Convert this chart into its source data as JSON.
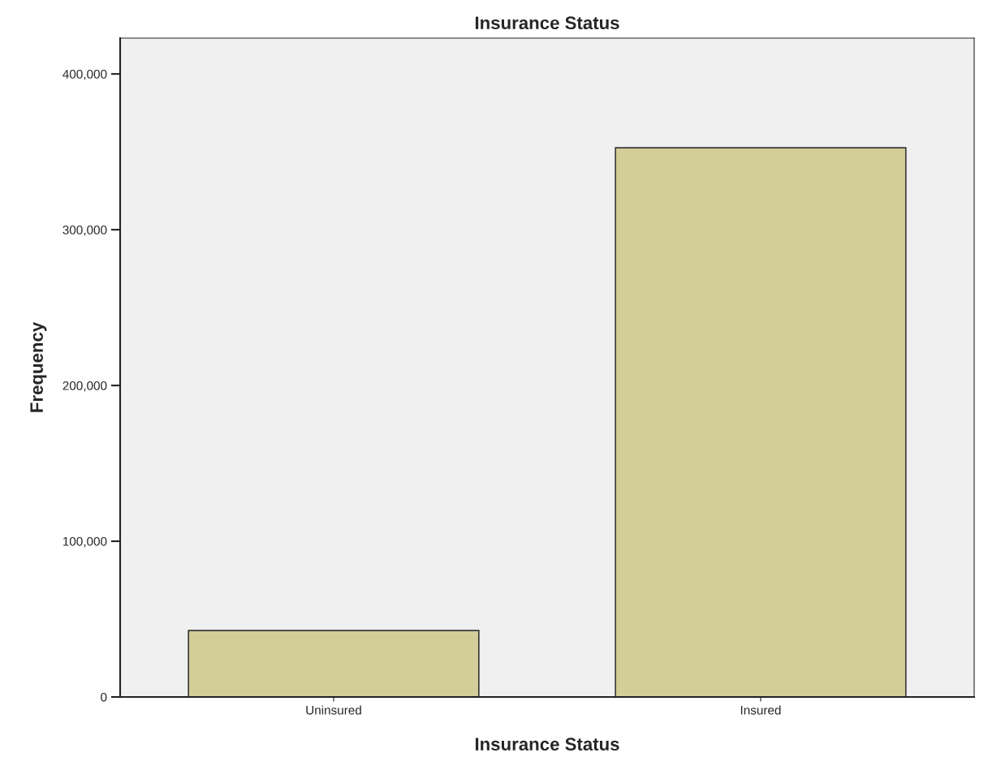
{
  "chart_data": {
    "type": "bar",
    "title": "Insurance Status",
    "xlabel": "Insurance Status",
    "ylabel": "Frequency",
    "categories": [
      "Uninsured",
      "Insured"
    ],
    "values": [
      42700,
      352600
    ],
    "color": "#d3cd98",
    "ylim": [
      0,
      423000
    ],
    "yticks": [
      {
        "value": 0,
        "label": "0"
      },
      {
        "value": 100000,
        "label": "100,000"
      },
      {
        "value": 200000,
        "label": "200,000"
      },
      {
        "value": 300000,
        "label": "300,000"
      },
      {
        "value": 400000,
        "label": "400,000"
      }
    ],
    "grid": false
  }
}
